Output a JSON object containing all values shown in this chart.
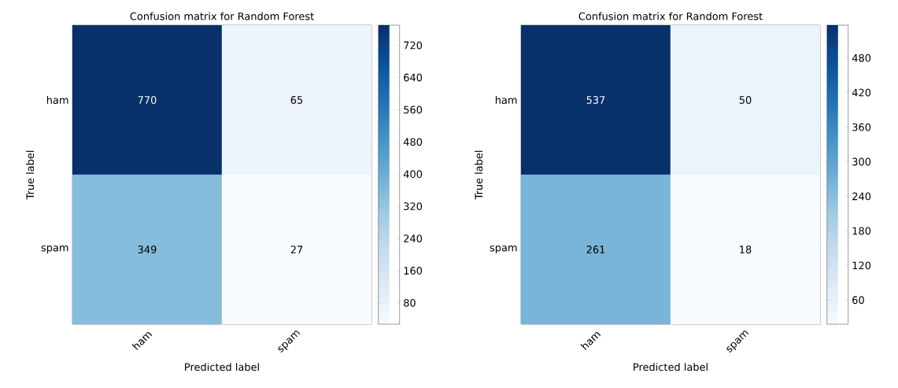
{
  "chart_data": [
    {
      "type": "heatmap",
      "title": "Confusion matrix for Random Forest",
      "xlabel": "Predicted label",
      "ylabel": "True label",
      "categories": [
        "ham",
        "spam"
      ],
      "y_categories": [
        "ham",
        "spam"
      ],
      "cells": [
        [
          770,
          65
        ],
        [
          349,
          27
        ]
      ],
      "data_labels": true,
      "clim": [
        27,
        770
      ],
      "cticks": [
        80,
        160,
        240,
        320,
        400,
        480,
        560,
        640,
        720
      ]
    },
    {
      "type": "heatmap",
      "title": "Confusion matrix for Random Forest",
      "xlabel": "Predicted label",
      "ylabel": "True label",
      "categories": [
        "ham",
        "spam"
      ],
      "y_categories": [
        "ham",
        "spam"
      ],
      "cells": [
        [
          537,
          50
        ],
        [
          261,
          18
        ]
      ],
      "data_labels": true,
      "clim": [
        18,
        537
      ],
      "cticks": [
        60,
        120,
        180,
        240,
        300,
        360,
        420,
        480
      ]
    }
  ]
}
